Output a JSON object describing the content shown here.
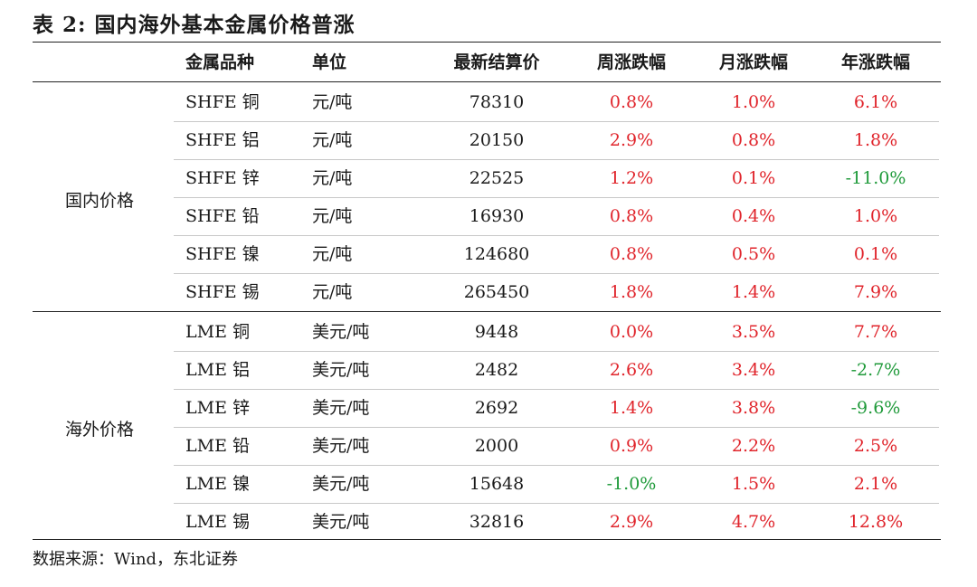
{
  "title": "表 2: 国内海外基本金属价格普涨",
  "headers": [
    "金属品种",
    "单位",
    "最新结算价",
    "周涨跌幅",
    "月涨跌幅",
    "年涨跌幅"
  ],
  "groups": [
    {
      "label": "国内价格",
      "rows": [
        {
          "metal": "SHFE 铜",
          "unit": "元/吨",
          "price": "78310",
          "week": "0.8%",
          "month": "1.0%",
          "year": "6.1%"
        },
        {
          "metal": "SHFE 铝",
          "unit": "元/吨",
          "price": "20150",
          "week": "2.9%",
          "month": "0.8%",
          "year": "1.8%"
        },
        {
          "metal": "SHFE 锌",
          "unit": "元/吨",
          "price": "22525",
          "week": "1.2%",
          "month": "0.1%",
          "year": "-11.0%"
        },
        {
          "metal": "SHFE 铅",
          "unit": "元/吨",
          "price": "16930",
          "week": "0.8%",
          "month": "0.4%",
          "year": "1.0%"
        },
        {
          "metal": "SHFE 镍",
          "unit": "元/吨",
          "price": "124680",
          "week": "0.8%",
          "month": "0.5%",
          "year": "0.1%"
        },
        {
          "metal": "SHFE 锡",
          "unit": "元/吨",
          "price": "265450",
          "week": "1.8%",
          "month": "1.4%",
          "year": "7.9%"
        }
      ]
    },
    {
      "label": "海外价格",
      "rows": [
        {
          "metal": "LME 铜",
          "unit": "美元/吨",
          "price": "9448",
          "week": "0.0%",
          "month": "3.5%",
          "year": "7.7%"
        },
        {
          "metal": "LME 铝",
          "unit": "美元/吨",
          "price": "2482",
          "week": "2.6%",
          "month": "3.4%",
          "year": "-2.7%"
        },
        {
          "metal": "LME 锌",
          "unit": "美元/吨",
          "price": "2692",
          "week": "1.4%",
          "month": "3.8%",
          "year": "-9.6%"
        },
        {
          "metal": "LME 铅",
          "unit": "美元/吨",
          "price": "2000",
          "week": "0.9%",
          "month": "2.2%",
          "year": "2.5%"
        },
        {
          "metal": "LME 镍",
          "unit": "美元/吨",
          "price": "15648",
          "week": "-1.0%",
          "month": "1.5%",
          "year": "2.1%"
        },
        {
          "metal": "LME 锡",
          "unit": "美元/吨",
          "price": "32816",
          "week": "2.9%",
          "month": "4.7%",
          "year": "12.8%"
        }
      ]
    }
  ],
  "colors": {
    "up": "#e0242b",
    "down": "#1f9a3a"
  },
  "source": "数据来源：Wind，东北证券"
}
